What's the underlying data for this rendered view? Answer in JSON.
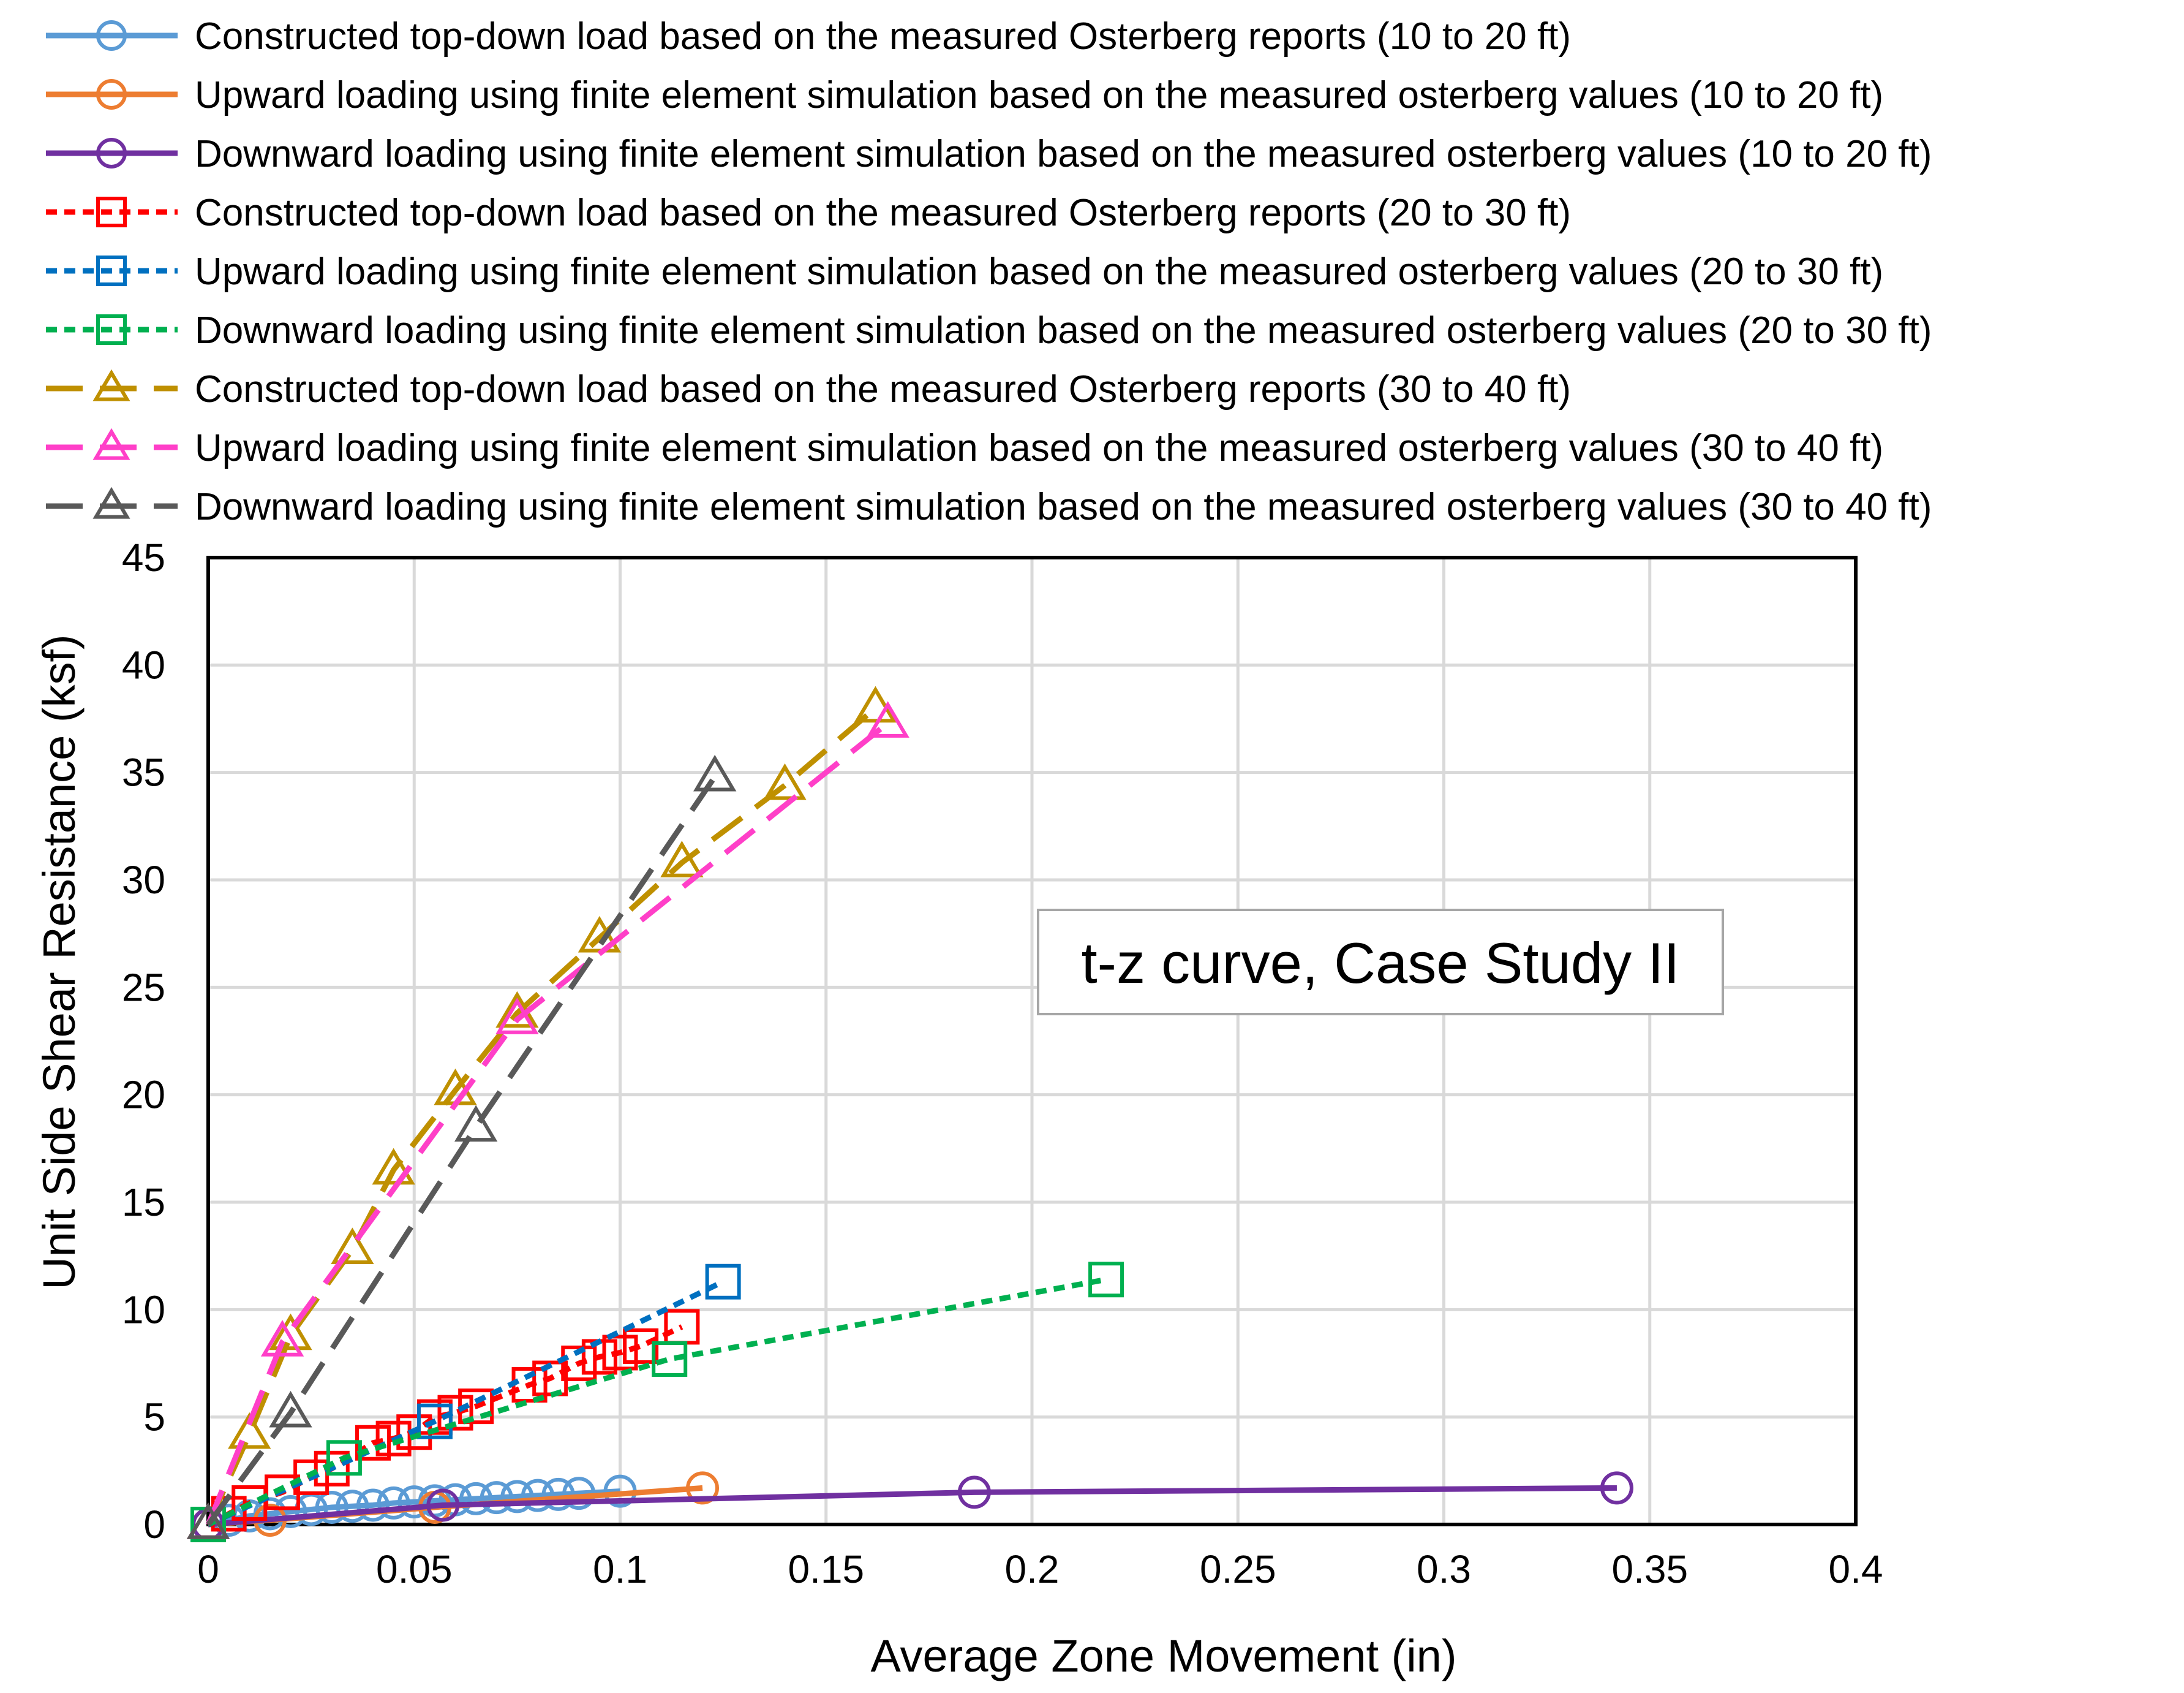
{
  "chart_data": {
    "type": "scatter",
    "title": "t-z curve, Case Study II",
    "xlabel": "Average Zone Movement (in)",
    "ylabel": "Unit Side Shear Resistance (ksf)",
    "xlim": [
      0,
      0.4
    ],
    "ylim": [
      0,
      45
    ],
    "x_ticks": [
      "0",
      "0.05",
      "0.1",
      "0.15",
      "0.2",
      "0.25",
      "0.3",
      "0.35",
      "0.4"
    ],
    "y_ticks": [
      "0",
      "5",
      "10",
      "15",
      "20",
      "25",
      "30",
      "35",
      "40",
      "45"
    ],
    "grid": true,
    "legend_position": "top",
    "series": [
      {
        "name": "Constructed top-down load based on the measured Osterberg reports (10 to 20 ft)",
        "color": "#5B9BD5",
        "marker": "circle",
        "dash": "solid",
        "x": [
          0,
          0.005,
          0.01,
          0.015,
          0.02,
          0.025,
          0.03,
          0.035,
          0.04,
          0.045,
          0.05,
          0.055,
          0.06,
          0.065,
          0.07,
          0.075,
          0.08,
          0.085,
          0.09,
          0.1
        ],
        "y": [
          0,
          0.2,
          0.4,
          0.5,
          0.6,
          0.7,
          0.8,
          0.85,
          0.9,
          1.0,
          1.05,
          1.1,
          1.15,
          1.2,
          1.25,
          1.3,
          1.35,
          1.4,
          1.45,
          1.55
        ]
      },
      {
        "name": "Upward loading using finite element simulation  based on the measured osterberg values  (10 to 20 ft)",
        "color": "#ED7D31",
        "marker": "circle",
        "dash": "solid",
        "x": [
          0,
          0.015,
          0.055,
          0.12
        ],
        "y": [
          0,
          0.2,
          0.8,
          1.7
        ]
      },
      {
        "name": "Downward loading using finite element simulation  based on the measured osterberg values  (10 to 20 ft)",
        "color": "#7030A0",
        "marker": "circle",
        "dash": "solid",
        "x": [
          0,
          0.057,
          0.186,
          0.342
        ],
        "y": [
          0,
          0.9,
          1.5,
          1.7
        ]
      },
      {
        "name": "Constructed top-down load based on the measured Osterberg reports (20 to 30 ft)",
        "color": "#FF0000",
        "marker": "square",
        "dash": "short",
        "x": [
          0,
          0.005,
          0.01,
          0.018,
          0.025,
          0.03,
          0.04,
          0.045,
          0.05,
          0.055,
          0.06,
          0.065,
          0.078,
          0.083,
          0.09,
          0.095,
          0.1,
          0.105,
          0.115
        ],
        "y": [
          0,
          0.5,
          1.0,
          1.5,
          2.2,
          2.6,
          3.8,
          4.0,
          4.3,
          5.0,
          5.2,
          5.5,
          6.5,
          6.8,
          7.5,
          7.8,
          8.0,
          8.3,
          9.2
        ]
      },
      {
        "name": "Upward loading using finite element simulation  based on the measured osterberg values  (20 to 30 ft)",
        "color": "#0070C0",
        "marker": "square",
        "dash": "short",
        "x": [
          0,
          0.055,
          0.125
        ],
        "y": [
          0,
          4.8,
          11.3
        ]
      },
      {
        "name": "Downward loading using finite element simulation  based on the measured osterberg values  (20 to 30 ft)",
        "color": "#00B050",
        "marker": "square",
        "dash": "short",
        "x": [
          0,
          0.033,
          0.112,
          0.218
        ],
        "y": [
          0,
          3.1,
          7.7,
          11.4
        ]
      },
      {
        "name": "Constructed top-down load based on the measured Osterberg reports (30 to 40 ft)",
        "color": "#BF9000",
        "marker": "triangle",
        "dash": "long",
        "x": [
          0,
          0.01,
          0.02,
          0.035,
          0.045,
          0.06,
          0.075,
          0.095,
          0.115,
          0.14,
          0.162
        ],
        "y": [
          0,
          4.2,
          8.8,
          12.8,
          16.5,
          20.2,
          23.8,
          27.3,
          30.8,
          34.4,
          38.0
        ]
      },
      {
        "name": "Upward loading using finite element simulation  based on the measured osterberg values  (30 to 40 ft)",
        "color": "#FF3FC8",
        "marker": "triangle",
        "dash": "long",
        "x": [
          0,
          0.018,
          0.075,
          0.165
        ],
        "y": [
          0,
          8.5,
          23.5,
          37.3
        ]
      },
      {
        "name": "Downward loading using finite element simulation  based on the measured osterberg values  (30 to 40 ft)",
        "color": "#595959",
        "marker": "triangle",
        "dash": "long",
        "x": [
          0,
          0.02,
          0.065,
          0.123
        ],
        "y": [
          0,
          5.2,
          18.5,
          34.8
        ]
      }
    ]
  }
}
